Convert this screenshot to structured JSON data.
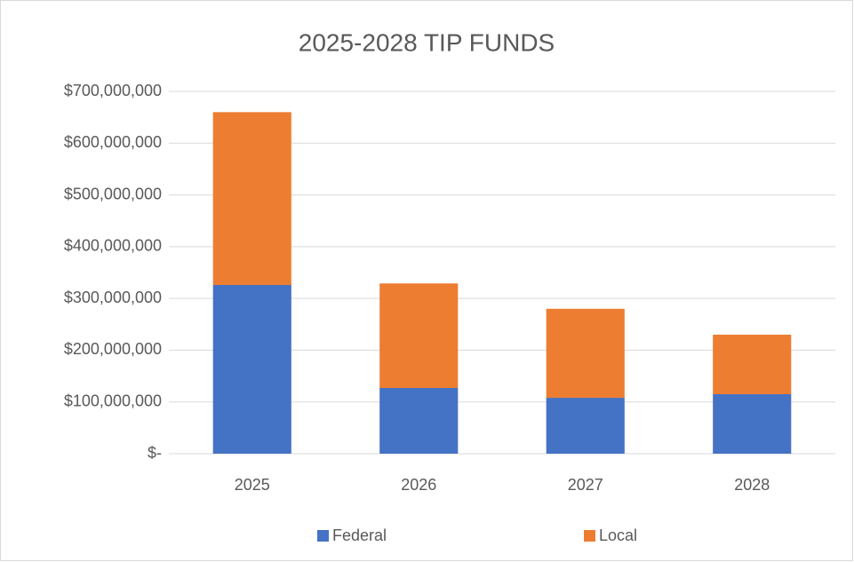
{
  "chart_data": {
    "type": "stacked_bar",
    "title": "2025-2028 TIP FUNDS",
    "categories": [
      "2025",
      "2026",
      "2027",
      "2028"
    ],
    "series": [
      {
        "name": "Federal",
        "color": "#4472c4",
        "values": [
          326000000,
          127000000,
          108000000,
          115000000
        ]
      },
      {
        "name": "Local",
        "color": "#ed7d31",
        "values": [
          334000000,
          202000000,
          172000000,
          115000000
        ]
      }
    ],
    "ylim": [
      0,
      700000000
    ],
    "yticks": [
      {
        "value": 0,
        "label": "$-"
      },
      {
        "value": 100000000,
        "label": "$100,000,000"
      },
      {
        "value": 200000000,
        "label": "$200,000,000"
      },
      {
        "value": 300000000,
        "label": "$300,000,000"
      },
      {
        "value": 400000000,
        "label": "$400,000,000"
      },
      {
        "value": 500000000,
        "label": "$500,000,000"
      },
      {
        "value": 600000000,
        "label": "$600,000,000"
      },
      {
        "value": 700000000,
        "label": "$700,000,000"
      }
    ],
    "grid": true,
    "legend": "bottom"
  }
}
